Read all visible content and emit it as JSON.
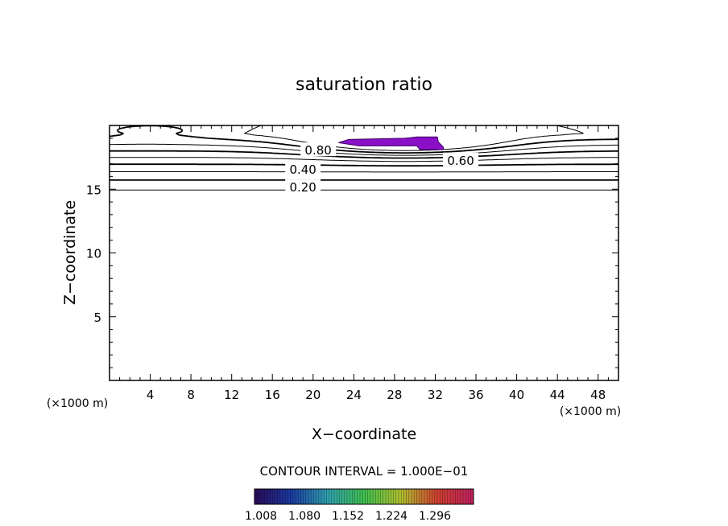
{
  "chart_data": {
    "type": "contour",
    "title": "saturation ratio",
    "xlabel": "X−coordinate",
    "ylabel": "Z−coordinate",
    "x_unit_left": "(×1000 m)",
    "x_unit_right": "(×1000 m)",
    "xlim": [
      0,
      50
    ],
    "ylim": [
      0,
      20
    ],
    "x_ticks": [
      4,
      8,
      12,
      16,
      20,
      24,
      28,
      32,
      36,
      40,
      44,
      48
    ],
    "y_ticks": [
      5,
      10,
      15
    ],
    "contour_levels": [
      {
        "value": 0.0,
        "label": ""
      },
      {
        "value": 0.1,
        "label": ""
      },
      {
        "value": 0.2,
        "label": "0.20"
      },
      {
        "value": 0.3,
        "label": ""
      },
      {
        "value": 0.4,
        "label": "0.40"
      },
      {
        "value": 0.5,
        "label": ""
      },
      {
        "value": 0.6,
        "label": "0.60"
      },
      {
        "value": 0.7,
        "label": ""
      },
      {
        "value": 0.8,
        "label": "0.80"
      },
      {
        "value": 0.9,
        "label": ""
      }
    ],
    "supersaturated_region": {
      "x_range": [
        22.5,
        32.8
      ],
      "z_range": [
        18.1,
        19.0
      ],
      "color": "#8a10c8"
    },
    "contour_interval_text": "CONTOUR INTERVAL = 1.000E−01",
    "colorbar": {
      "tick_labels": [
        "1.008",
        "1.080",
        "1.152",
        "1.224",
        "1.296"
      ],
      "colors": [
        "#2a0a5a",
        "#1a3aa0",
        "#30a0b0",
        "#40c050",
        "#b0c030",
        "#d04030",
        "#c02060"
      ]
    }
  }
}
